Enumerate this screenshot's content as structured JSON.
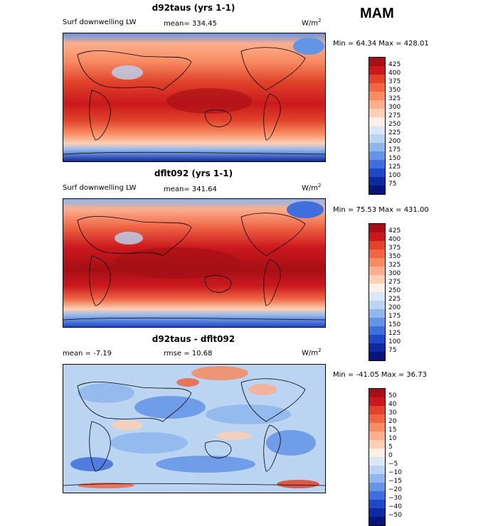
{
  "header": {
    "season": "MAM"
  },
  "panels": [
    {
      "title": "d92taus (yrs 1-1)",
      "var_label": "Surf downwelling LW",
      "stat": "mean= 334.45",
      "units": "W/m",
      "units_sup": "2",
      "minmax": "Min =  64.34 Max = 428.01",
      "levels": [
        "425",
        "400",
        "375",
        "350",
        "325",
        "300",
        "275",
        "250",
        "225",
        "200",
        "175",
        "150",
        "125",
        "100",
        "75"
      ],
      "colors": [
        "#a50f15",
        "#cb181d",
        "#e0432a",
        "#ef6545",
        "#f78b62",
        "#fbae8c",
        "#fdd0b5",
        "#fef0e6",
        "#dbe8f7",
        "#bad4f2",
        "#8fb6ee",
        "#6494e6",
        "#3f6fdc",
        "#1f48c8",
        "#0d2a9e",
        "#06157a"
      ]
    },
    {
      "title": "dflt092 (yrs 1-1)",
      "var_label": "Surf downwelling LW",
      "stat": "mean= 341.64",
      "units": "W/m",
      "units_sup": "2",
      "minmax": "Min =  75.53 Max = 431.00",
      "levels": [
        "425",
        "400",
        "375",
        "350",
        "325",
        "300",
        "275",
        "250",
        "225",
        "200",
        "175",
        "150",
        "125",
        "100",
        "75"
      ],
      "colors": [
        "#a50f15",
        "#cb181d",
        "#e0432a",
        "#ef6545",
        "#f78b62",
        "#fbae8c",
        "#fdd0b5",
        "#fef0e6",
        "#dbe8f7",
        "#bad4f2",
        "#8fb6ee",
        "#6494e6",
        "#3f6fdc",
        "#1f48c8",
        "#0d2a9e",
        "#06157a"
      ]
    },
    {
      "title": "d92taus - dflt092",
      "stat_mean": "mean =  -7.19",
      "stat_rmse": "rmse =  10.68",
      "units": "W/m",
      "units_sup": "2",
      "minmax": "Min = -41.05 Max =  36.73",
      "levels": [
        "50",
        "40",
        "30",
        "20",
        "15",
        "10",
        "5",
        "0",
        "−5",
        "−10",
        "−15",
        "−20",
        "−30",
        "−40",
        "−50"
      ],
      "colors": [
        "#a50f15",
        "#cb181d",
        "#e0432a",
        "#ef6545",
        "#f78b62",
        "#fbae8c",
        "#fdd0b5",
        "#fef0e6",
        "#dbe8f7",
        "#bad4f2",
        "#8fb6ee",
        "#6494e6",
        "#3f6fdc",
        "#1f48c8",
        "#0d2a9e",
        "#06157a"
      ]
    }
  ],
  "chart_data": [
    {
      "type": "heatmap",
      "title": "d92taus (yrs 1-1)",
      "subtitle": "Surf downwelling LW",
      "mean": 334.45,
      "min": 64.34,
      "max": 428.01,
      "units": "W/m2",
      "contour_levels": [
        75,
        100,
        125,
        150,
        175,
        200,
        225,
        250,
        275,
        300,
        325,
        350,
        375,
        400,
        425
      ]
    },
    {
      "type": "heatmap",
      "title": "dflt092 (yrs 1-1)",
      "subtitle": "Surf downwelling LW",
      "mean": 341.64,
      "min": 75.53,
      "max": 431.0,
      "units": "W/m2",
      "contour_levels": [
        75,
        100,
        125,
        150,
        175,
        200,
        225,
        250,
        275,
        300,
        325,
        350,
        375,
        400,
        425
      ]
    },
    {
      "type": "heatmap",
      "title": "d92taus - dflt092",
      "mean": -7.19,
      "rmse": 10.68,
      "min": -41.05,
      "max": 36.73,
      "units": "W/m2",
      "contour_levels": [
        -50,
        -40,
        -30,
        -20,
        -15,
        -10,
        -5,
        0,
        5,
        10,
        15,
        20,
        30,
        40,
        50
      ]
    }
  ]
}
